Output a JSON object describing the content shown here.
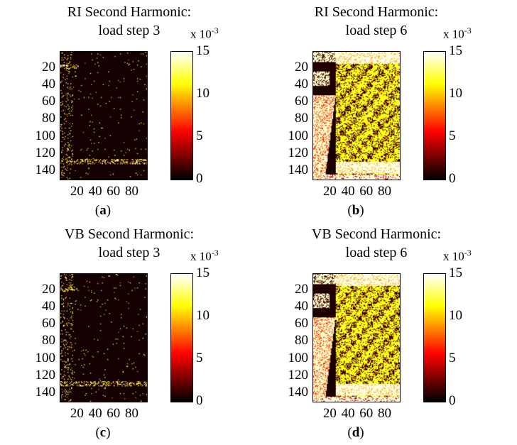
{
  "chart_data": [
    {
      "type": "heatmap",
      "title": "RI Second Harmonic:",
      "subtitle": "load step 3",
      "caption_letter": "a",
      "pattern": "sparse",
      "xticks": [
        "20",
        "40",
        "60",
        "80"
      ],
      "yticks": [
        "20",
        "40",
        "60",
        "80",
        "100",
        "120",
        "140"
      ],
      "x_range": [
        1,
        96
      ],
      "y_range": [
        1,
        150
      ],
      "colorbar": {
        "ticks": [
          "0",
          "5",
          "10",
          "15"
        ],
        "range": [
          0,
          15
        ],
        "exponent_base": "x 10",
        "exponent_power": "-3",
        "colormap": "hot"
      }
    },
    {
      "type": "heatmap",
      "title": "RI Second Harmonic:",
      "subtitle": "load step 6",
      "caption_letter": "b",
      "pattern": "dense",
      "xticks": [
        "20",
        "40",
        "60",
        "80"
      ],
      "yticks": [
        "20",
        "40",
        "60",
        "80",
        "100",
        "120",
        "140"
      ],
      "x_range": [
        1,
        96
      ],
      "y_range": [
        1,
        150
      ],
      "colorbar": {
        "ticks": [
          "0",
          "5",
          "10",
          "15"
        ],
        "range": [
          0,
          15
        ],
        "exponent_base": "x 10",
        "exponent_power": "-3",
        "colormap": "hot"
      }
    },
    {
      "type": "heatmap",
      "title": "VB Second Harmonic:",
      "subtitle": "load step 3",
      "caption_letter": "c",
      "pattern": "sparse",
      "xticks": [
        "20",
        "40",
        "60",
        "80"
      ],
      "yticks": [
        "20",
        "40",
        "60",
        "80",
        "100",
        "120",
        "140"
      ],
      "x_range": [
        1,
        96
      ],
      "y_range": [
        1,
        150
      ],
      "colorbar": {
        "ticks": [
          "0",
          "5",
          "10",
          "15"
        ],
        "range": [
          0,
          15
        ],
        "exponent_base": "x 10",
        "exponent_power": "-3",
        "colormap": "hot"
      }
    },
    {
      "type": "heatmap",
      "title": "VB Second Harmonic:",
      "subtitle": "load step 6",
      "caption_letter": "d",
      "pattern": "dense",
      "xticks": [
        "20",
        "40",
        "60",
        "80"
      ],
      "yticks": [
        "20",
        "40",
        "60",
        "80",
        "100",
        "120",
        "140"
      ],
      "x_range": [
        1,
        96
      ],
      "y_range": [
        1,
        150
      ],
      "colorbar": {
        "ticks": [
          "0",
          "5",
          "10",
          "15"
        ],
        "range": [
          0,
          15
        ],
        "exponent_base": "x 10",
        "exponent_power": "-3",
        "colormap": "hot"
      }
    }
  ]
}
